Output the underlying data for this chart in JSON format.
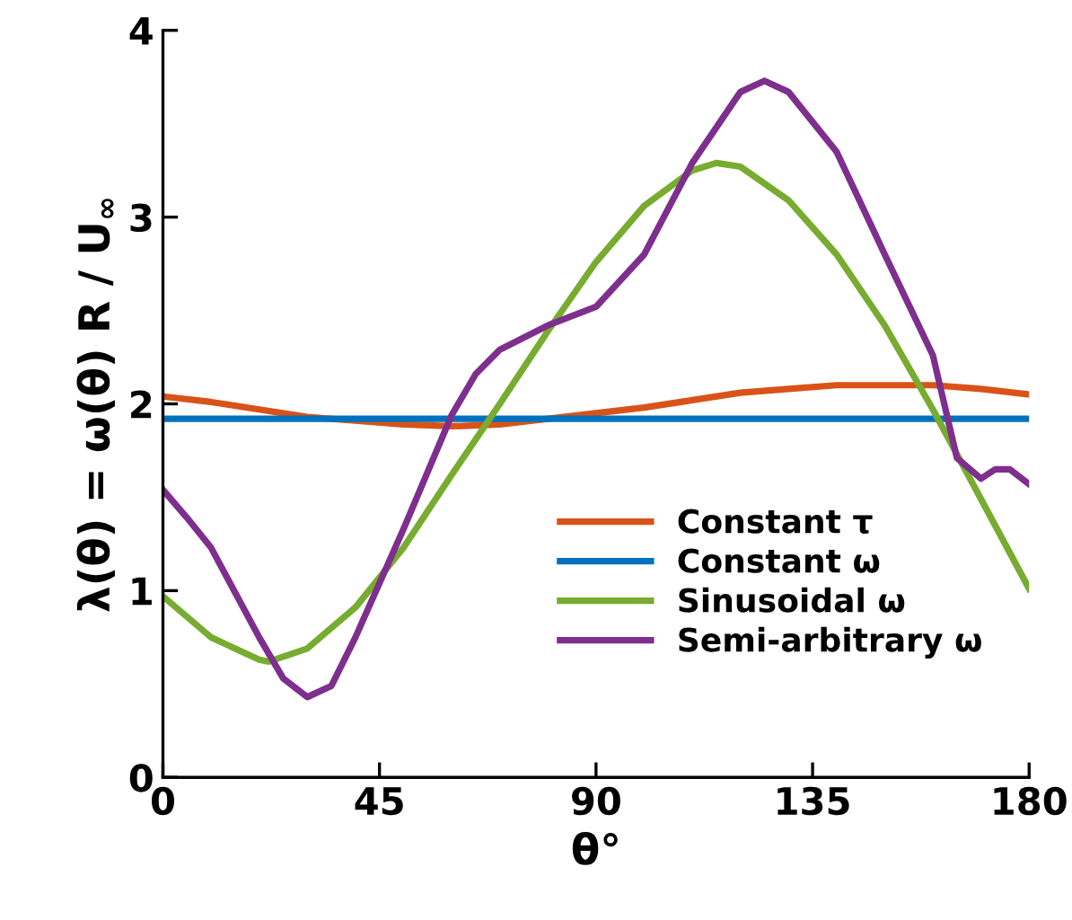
{
  "chart_data": {
    "type": "line",
    "xlabel": "θ°",
    "ylabel": "λ(θ) = ω(θ) R / U$_{∞}$",
    "x": [
      0,
      10,
      20,
      30,
      40,
      50,
      60,
      70,
      80,
      90,
      100,
      110,
      120,
      130,
      140,
      150,
      160,
      170,
      180
    ],
    "series": [
      {
        "name": "Constant τ",
        "color": "#d95319",
        "values": [
          2.04,
          2.01,
          1.97,
          1.93,
          1.91,
          1.89,
          1.88,
          1.89,
          1.92,
          1.95,
          1.98,
          2.02,
          2.06,
          2.08,
          2.1,
          2.1,
          2.1,
          2.08,
          2.05
        ]
      },
      {
        "name": "Constant ω",
        "color": "#0072bd",
        "values": [
          1.92,
          1.92,
          1.92,
          1.92,
          1.92,
          1.92,
          1.92,
          1.92,
          1.92,
          1.92,
          1.92,
          1.92,
          1.92,
          1.92,
          1.92,
          1.92,
          1.92,
          1.92,
          1.92
        ]
      },
      {
        "name": "Sinusoidal ω",
        "color": "#77ac30",
        "x": [
          0,
          10,
          20,
          22,
          30,
          40,
          50,
          60,
          70,
          80,
          90,
          100,
          110,
          115,
          120,
          130,
          140,
          150,
          160,
          170,
          180
        ],
        "values": [
          0.97,
          0.75,
          0.63,
          0.62,
          0.69,
          0.91,
          1.23,
          1.62,
          2.0,
          2.39,
          2.76,
          3.06,
          3.25,
          3.29,
          3.27,
          3.09,
          2.8,
          2.42,
          1.97,
          1.49,
          1.01
        ]
      },
      {
        "name": "Semi-arbitrary ω",
        "color": "#7e2f8e",
        "x": [
          0,
          5,
          10,
          20,
          25,
          30,
          35,
          40,
          50,
          60,
          65,
          70,
          80,
          90,
          100,
          110,
          120,
          125,
          130,
          140,
          150,
          160,
          165,
          170,
          173,
          176,
          180
        ],
        "values": [
          1.54,
          1.39,
          1.23,
          0.75,
          0.53,
          0.43,
          0.49,
          0.75,
          1.33,
          1.94,
          2.16,
          2.29,
          2.42,
          2.52,
          2.8,
          3.29,
          3.67,
          3.73,
          3.67,
          3.35,
          2.8,
          2.26,
          1.71,
          1.6,
          1.65,
          1.65,
          1.57
        ]
      }
    ],
    "xlim": [
      0,
      180
    ],
    "xticks": [
      0,
      45,
      90,
      135,
      180
    ],
    "ylim": [
      0,
      4
    ],
    "yticks": [
      0,
      1,
      2,
      3,
      4
    ],
    "grid": false,
    "legend": "bottom right",
    "line_style": "solid",
    "marker": "none"
  }
}
